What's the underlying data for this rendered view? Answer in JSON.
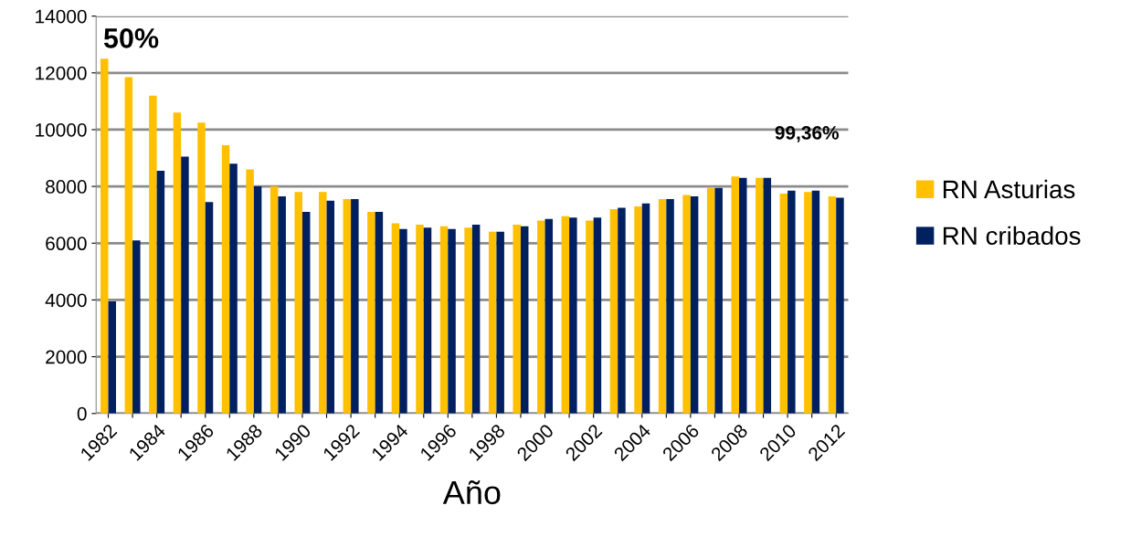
{
  "chart_data": {
    "type": "bar",
    "xlabel": "Año",
    "categories": [
      "1982",
      null,
      "1984",
      null,
      "1986",
      null,
      "1988",
      null,
      "1990",
      null,
      "1992",
      null,
      "1994",
      null,
      "1996",
      null,
      "1998",
      null,
      "2000",
      null,
      "2002",
      null,
      "2004",
      null,
      "2006",
      null,
      "2008",
      null,
      "2010",
      null,
      "2012"
    ],
    "series": [
      {
        "name": "RN Asturias",
        "color": "#ffc000",
        "values": [
          12500,
          11850,
          11200,
          10600,
          10250,
          9450,
          8600,
          8000,
          7800,
          7800,
          7550,
          7100,
          6700,
          6650,
          6600,
          6550,
          6400,
          6650,
          6800,
          6950,
          6800,
          7200,
          7300,
          7550,
          7700,
          7950,
          8350,
          8300,
          7750,
          7800,
          7650
        ]
      },
      {
        "name": "RN cribados",
        "color": "#002060",
        "values": [
          3950,
          6100,
          8550,
          9050,
          7450,
          8800,
          8000,
          7650,
          7100,
          7500,
          7550,
          7100,
          6500,
          6550,
          6500,
          6650,
          6400,
          6600,
          6850,
          6900,
          6900,
          7250,
          7400,
          7550,
          7650,
          7950,
          8300,
          8300,
          7850,
          7850,
          7600
        ]
      }
    ],
    "ylim": [
      0,
      14000
    ],
    "yticks": [
      0,
      2000,
      4000,
      6000,
      8000,
      10000,
      12000,
      14000
    ],
    "annotations": [
      {
        "text": "50%",
        "x": "1982",
        "y": 12500
      },
      "99,36%"
    ],
    "grid": "y",
    "legend": "right"
  }
}
